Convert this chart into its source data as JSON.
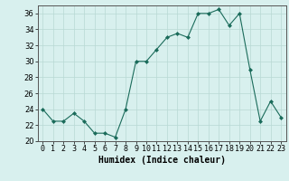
{
  "x": [
    0,
    1,
    2,
    3,
    4,
    5,
    6,
    7,
    8,
    9,
    10,
    11,
    12,
    13,
    14,
    15,
    16,
    17,
    18,
    19,
    20,
    21,
    22,
    23
  ],
  "y": [
    24,
    22.5,
    22.5,
    23.5,
    22.5,
    21,
    21,
    20.5,
    24,
    30,
    30,
    31.5,
    33,
    33.5,
    33,
    36,
    36,
    36.5,
    34.5,
    36,
    29,
    22.5,
    25,
    23
  ],
  "line_color": "#1a6b5a",
  "marker_color": "#1a6b5a",
  "bg_color": "#d8f0ee",
  "grid_color": "#b8d8d4",
  "xlabel": "Humidex (Indice chaleur)",
  "ylim": [
    20,
    37
  ],
  "xlim": [
    -0.5,
    23.5
  ],
  "yticks": [
    20,
    22,
    24,
    26,
    28,
    30,
    32,
    34,
    36
  ],
  "xticks": [
    0,
    1,
    2,
    3,
    4,
    5,
    6,
    7,
    8,
    9,
    10,
    11,
    12,
    13,
    14,
    15,
    16,
    17,
    18,
    19,
    20,
    21,
    22,
    23
  ],
  "xtick_labels": [
    "0",
    "1",
    "2",
    "3",
    "4",
    "5",
    "6",
    "7",
    "8",
    "9",
    "10",
    "11",
    "12",
    "13",
    "14",
    "15",
    "16",
    "17",
    "18",
    "19",
    "20",
    "21",
    "22",
    "23"
  ],
  "xlabel_fontsize": 7,
  "tick_fontsize": 6
}
